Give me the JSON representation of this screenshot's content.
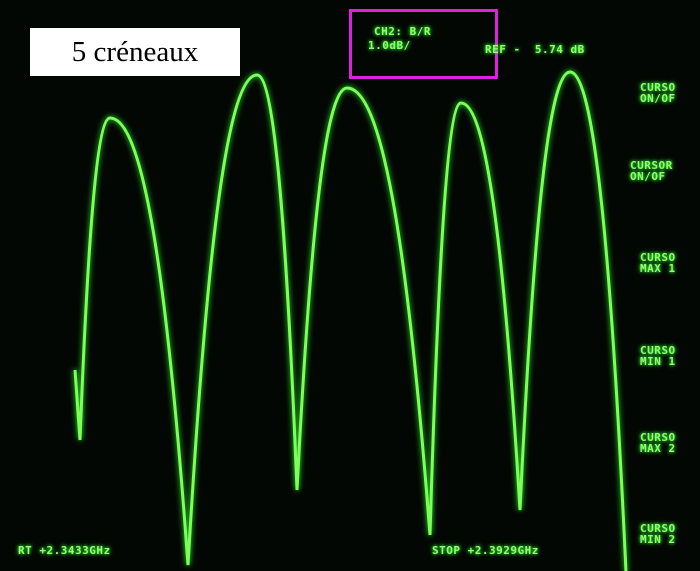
{
  "header": {
    "label_box": "5 créneaux",
    "channel": "CH2: B/R",
    "scale": "1.0dB/",
    "ref": "REF -  5.74 dB"
  },
  "softkeys": [
    [
      "CURSO",
      "ON/OF"
    ],
    [
      "CURSOR",
      "ON/OF"
    ],
    [
      "CURSO",
      "MAX 1"
    ],
    [
      "CURSO",
      "MIN 1"
    ],
    [
      "CURSO",
      "MAX 2"
    ],
    [
      "CURSO",
      "MIN 2"
    ]
  ],
  "footer": {
    "start": "RT +2.3433GHz",
    "stop": "STOP +2.3929GHz"
  }
}
